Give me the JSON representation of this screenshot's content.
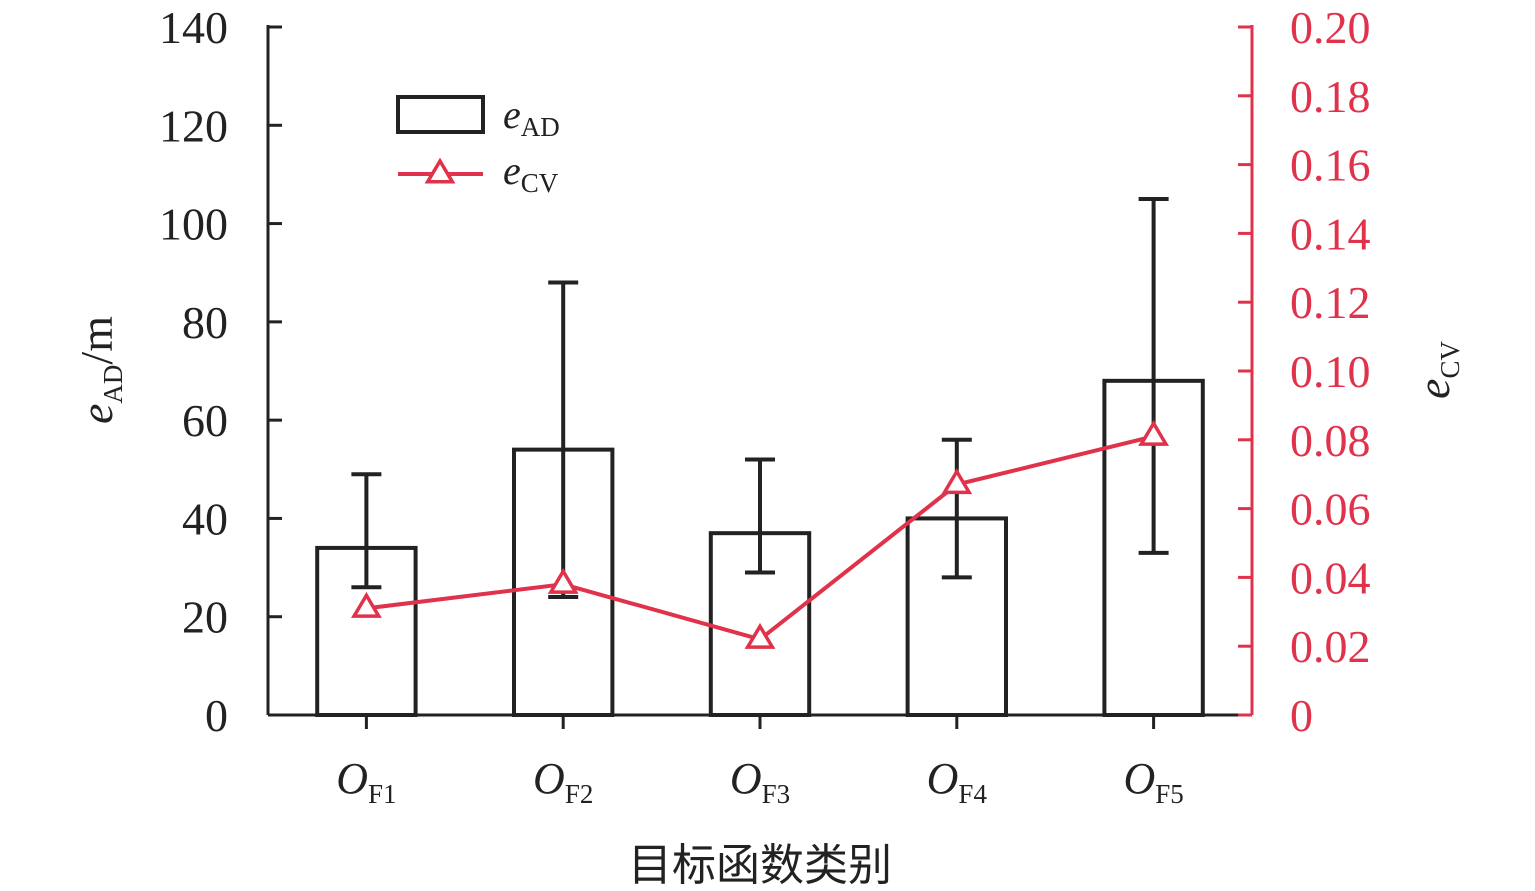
{
  "colors": {
    "axis": "#222222",
    "bar_stroke": "#222222",
    "bar_fill": "#ffffff",
    "line": "#e0324b",
    "right_axis": "#e0324b"
  },
  "chart_data": {
    "type": "bar",
    "categories": [
      {
        "main": "O",
        "sub": "F1"
      },
      {
        "main": "O",
        "sub": "F2"
      },
      {
        "main": "O",
        "sub": "F3"
      },
      {
        "main": "O",
        "sub": "F4"
      },
      {
        "main": "O",
        "sub": "F5"
      }
    ],
    "xlabel": "目标函数类别",
    "y_left": {
      "label": {
        "main": "e",
        "sub": "AD",
        "suffix": "/m"
      },
      "ylim": [
        0,
        140
      ],
      "ticks": [
        0,
        20,
        40,
        60,
        80,
        100,
        120,
        140
      ],
      "tick_labels": [
        "0",
        "20",
        "40",
        "60",
        "80",
        "100",
        "120",
        "140"
      ]
    },
    "y_right": {
      "label": {
        "main": "e",
        "sub": "CV"
      },
      "ylim": [
        0,
        0.2
      ],
      "ticks": [
        0,
        0.02,
        0.04,
        0.06,
        0.08,
        0.1,
        0.12,
        0.14,
        0.16,
        0.18,
        0.2
      ],
      "tick_labels": [
        "0",
        "0.02",
        "0.04",
        "0.06",
        "0.08",
        "0.10",
        "0.12",
        "0.14",
        "0.16",
        "0.18",
        "0.20"
      ]
    },
    "series": [
      {
        "name": {
          "main": "e",
          "sub": "AD"
        },
        "kind": "bar",
        "axis": "left",
        "values": [
          34,
          54,
          37,
          40,
          68
        ],
        "error_low": [
          26,
          24,
          29,
          28,
          33
        ],
        "error_high": [
          49,
          88,
          52,
          56,
          105
        ]
      },
      {
        "name": {
          "main": "e",
          "sub": "CV"
        },
        "kind": "line",
        "marker": "triangle",
        "axis": "right",
        "values": [
          0.031,
          0.038,
          0.022,
          0.067,
          0.081
        ]
      }
    ],
    "legend": {
      "position": "top-left"
    },
    "grid": false
  }
}
